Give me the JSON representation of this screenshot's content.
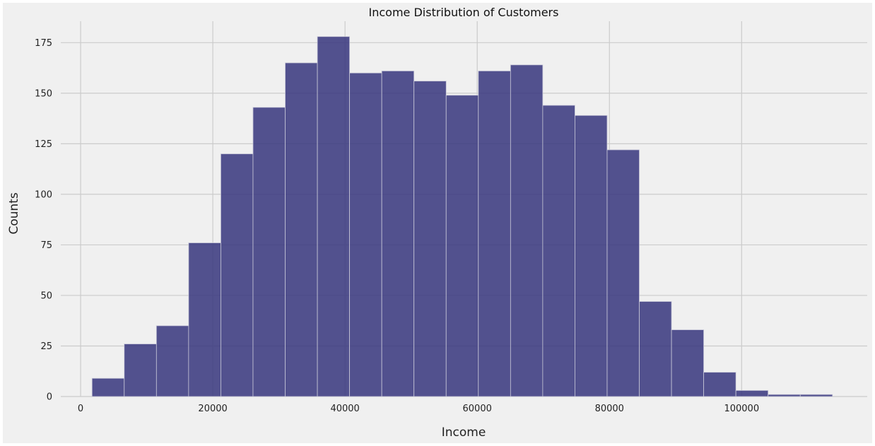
{
  "chart_data": {
    "type": "bar",
    "title": "Income Distribution of Customers",
    "xlabel": "Income",
    "ylabel": "Counts",
    "xlim": [
      -3000,
      119000
    ],
    "ylim": [
      0,
      187
    ],
    "x_ticks": [
      0,
      20000,
      40000,
      60000,
      80000,
      100000
    ],
    "y_ticks": [
      0,
      25,
      50,
      75,
      100,
      125,
      150,
      175
    ],
    "grid": true,
    "bar_color": "#3b3a80",
    "bins": [
      {
        "x0": 1730,
        "x1": 6600,
        "count": 9
      },
      {
        "x0": 6600,
        "x1": 11470,
        "count": 26
      },
      {
        "x0": 11470,
        "x1": 16340,
        "count": 35
      },
      {
        "x0": 16340,
        "x1": 21210,
        "count": 76
      },
      {
        "x0": 21210,
        "x1": 26080,
        "count": 120
      },
      {
        "x0": 26080,
        "x1": 30950,
        "count": 143
      },
      {
        "x0": 30950,
        "x1": 35820,
        "count": 165
      },
      {
        "x0": 35820,
        "x1": 40690,
        "count": 178
      },
      {
        "x0": 40690,
        "x1": 45560,
        "count": 160
      },
      {
        "x0": 45560,
        "x1": 50430,
        "count": 161
      },
      {
        "x0": 50430,
        "x1": 55300,
        "count": 156
      },
      {
        "x0": 55300,
        "x1": 60170,
        "count": 149
      },
      {
        "x0": 60170,
        "x1": 65040,
        "count": 161
      },
      {
        "x0": 65040,
        "x1": 69910,
        "count": 164
      },
      {
        "x0": 69910,
        "x1": 74780,
        "count": 144
      },
      {
        "x0": 74780,
        "x1": 79650,
        "count": 139
      },
      {
        "x0": 79650,
        "x1": 84520,
        "count": 122
      },
      {
        "x0": 84520,
        "x1": 89390,
        "count": 47
      },
      {
        "x0": 89390,
        "x1": 94260,
        "count": 33
      },
      {
        "x0": 94260,
        "x1": 99130,
        "count": 12
      },
      {
        "x0": 99130,
        "x1": 104000,
        "count": 3
      },
      {
        "x0": 104000,
        "x1": 108870,
        "count": 1
      },
      {
        "x0": 108870,
        "x1": 113740,
        "count": 1
      }
    ]
  }
}
